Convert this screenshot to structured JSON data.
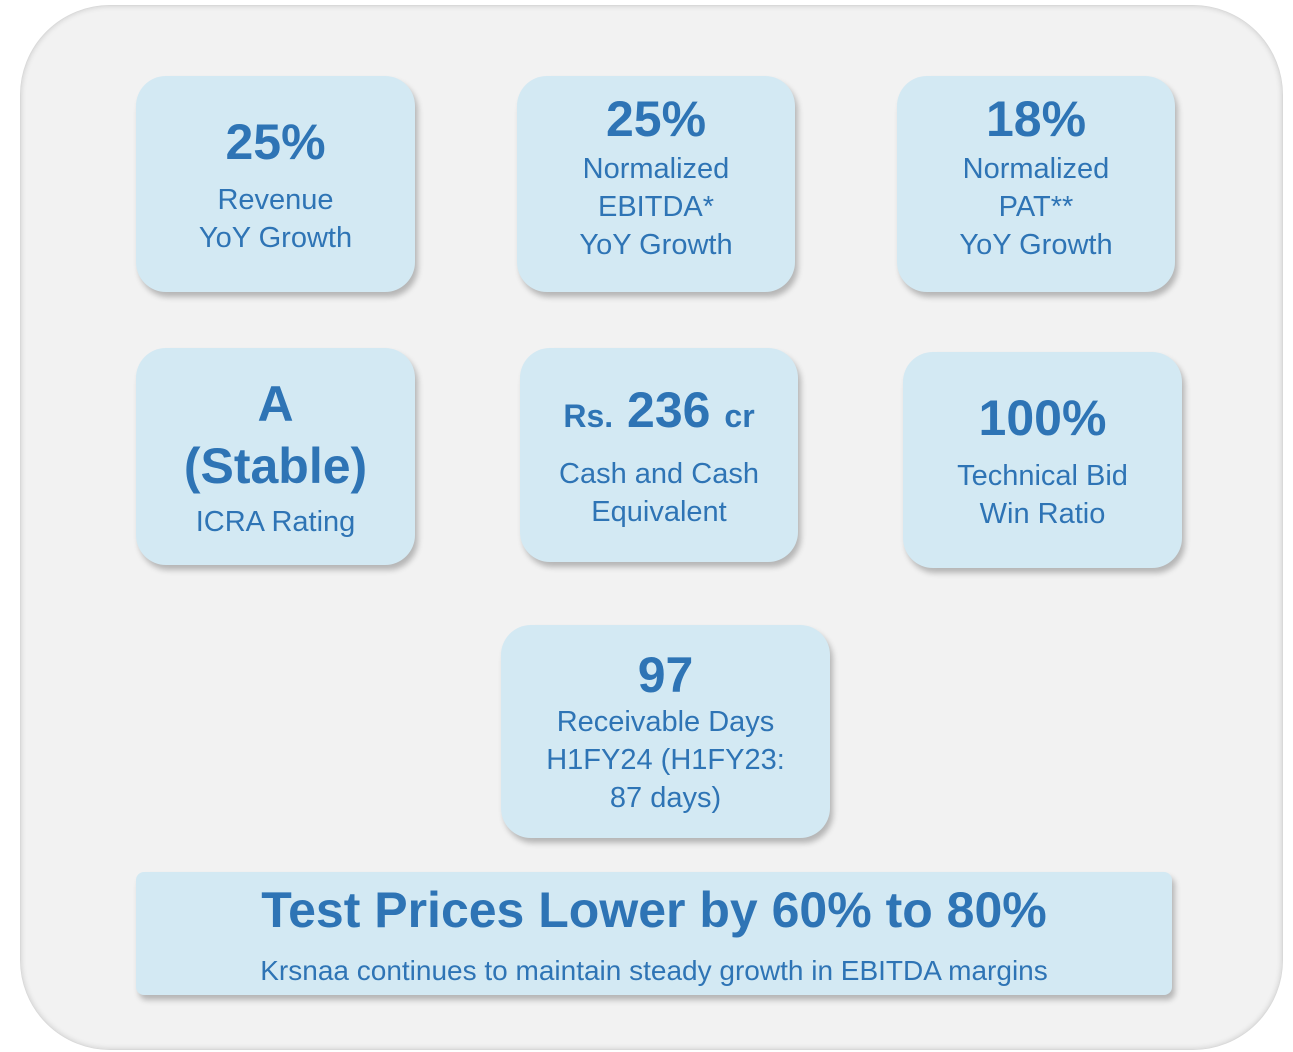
{
  "cards": [
    {
      "value": "25%",
      "label": [
        "Revenue",
        "YoY Growth"
      ]
    },
    {
      "value": "25%",
      "label": [
        "Normalized",
        "EBITDA*",
        "YoY Growth"
      ]
    },
    {
      "value": "18%",
      "label": [
        "Normalized",
        "PAT**",
        "YoY Growth"
      ]
    },
    {
      "value": [
        "A",
        "(Stable)"
      ],
      "label": [
        "ICRA Rating"
      ]
    },
    {
      "value": {
        "prefix": "Rs.",
        "amount": "236",
        "suffix": "cr"
      },
      "label": [
        "Cash and Cash",
        "Equivalent"
      ]
    },
    {
      "value": "100%",
      "label": [
        "Technical Bid",
        "Win Ratio"
      ]
    },
    {
      "value": "97",
      "label": [
        "Receivable Days",
        "H1FY24 (H1FY23:",
        "87 days)"
      ]
    }
  ],
  "banner": {
    "title": "Test Prices Lower by 60% to 80%",
    "subtitle": "Krsnaa continues to maintain steady growth in EBITDA margins"
  }
}
